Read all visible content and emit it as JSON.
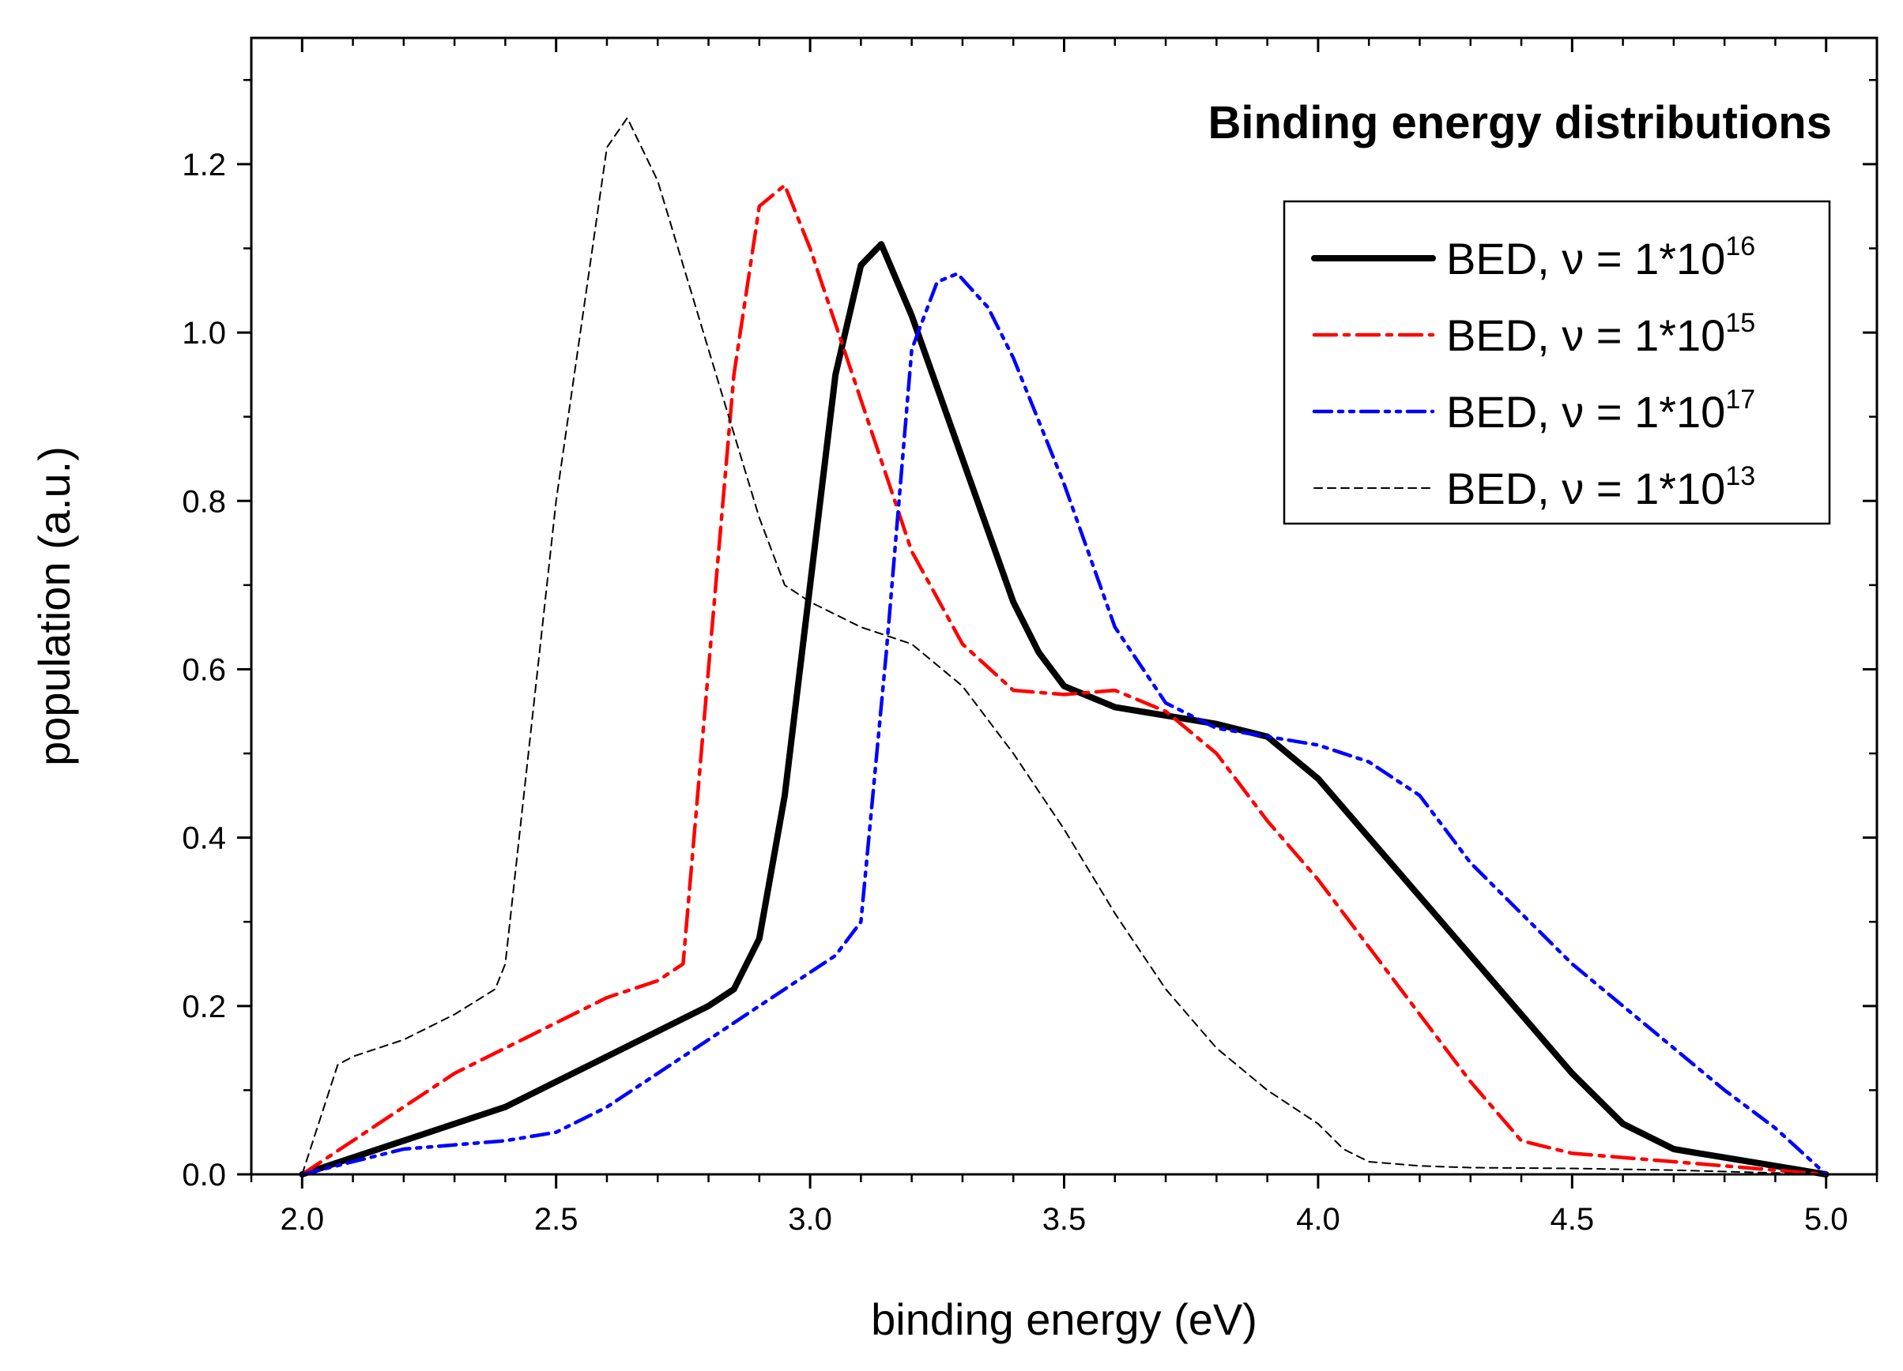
{
  "chart_data": {
    "type": "line",
    "title": "Binding energy distributions",
    "xlabel": "binding energy (eV)",
    "ylabel": "population (a.u.)",
    "xlim": [
      1.9,
      5.1
    ],
    "ylim": [
      0.0,
      1.35
    ],
    "xticks": [
      "2.0",
      "2.5",
      "3.0",
      "3.5",
      "4.0",
      "4.5",
      "5.0"
    ],
    "yticks": [
      "0.0",
      "0.2",
      "0.4",
      "0.6",
      "0.8",
      "1.0",
      "1.2"
    ],
    "legend_position": "top-right",
    "grid": false,
    "series": [
      {
        "name": "BED, ν = 1*10",
        "sup": "16",
        "color": "#000000",
        "style": "solid-thick",
        "x": [
          2.0,
          2.1,
          2.2,
          2.3,
          2.4,
          2.5,
          2.6,
          2.7,
          2.8,
          2.85,
          2.9,
          2.95,
          3.0,
          3.05,
          3.1,
          3.14,
          3.2,
          3.3,
          3.4,
          3.45,
          3.5,
          3.6,
          3.7,
          3.8,
          3.9,
          4.0,
          4.1,
          4.2,
          4.3,
          4.4,
          4.5,
          4.6,
          4.7,
          4.75,
          4.8,
          4.9,
          5.0
        ],
        "y": [
          0.0,
          0.02,
          0.04,
          0.06,
          0.08,
          0.11,
          0.14,
          0.17,
          0.2,
          0.22,
          0.28,
          0.45,
          0.7,
          0.95,
          1.08,
          1.105,
          1.02,
          0.85,
          0.68,
          0.62,
          0.58,
          0.555,
          0.545,
          0.535,
          0.52,
          0.47,
          0.4,
          0.33,
          0.26,
          0.19,
          0.12,
          0.06,
          0.03,
          0.025,
          0.02,
          0.01,
          0.0
        ]
      },
      {
        "name": "BED, ν = 1*10",
        "sup": "15",
        "color": "#ff0000",
        "style": "dash-dot",
        "x": [
          2.0,
          2.1,
          2.2,
          2.3,
          2.4,
          2.5,
          2.6,
          2.7,
          2.75,
          2.8,
          2.85,
          2.9,
          2.95,
          3.0,
          3.1,
          3.2,
          3.3,
          3.4,
          3.5,
          3.6,
          3.7,
          3.8,
          3.9,
          4.0,
          4.1,
          4.2,
          4.3,
          4.4,
          4.5,
          4.6,
          4.7,
          4.8,
          4.9,
          5.0
        ],
        "y": [
          0.0,
          0.04,
          0.08,
          0.12,
          0.15,
          0.18,
          0.21,
          0.23,
          0.25,
          0.6,
          0.95,
          1.15,
          1.175,
          1.1,
          0.92,
          0.74,
          0.63,
          0.575,
          0.57,
          0.575,
          0.55,
          0.5,
          0.42,
          0.35,
          0.27,
          0.19,
          0.11,
          0.04,
          0.025,
          0.02,
          0.015,
          0.01,
          0.005,
          0.0
        ]
      },
      {
        "name": "BED, ν = 1*10",
        "sup": "17",
        "color": "#0000ff",
        "style": "dash-dot-dot",
        "x": [
          2.0,
          2.1,
          2.2,
          2.3,
          2.4,
          2.5,
          2.6,
          2.7,
          2.8,
          2.9,
          3.0,
          3.05,
          3.1,
          3.15,
          3.2,
          3.25,
          3.29,
          3.35,
          3.4,
          3.5,
          3.6,
          3.7,
          3.8,
          3.9,
          4.0,
          4.1,
          4.2,
          4.3,
          4.4,
          4.5,
          4.6,
          4.7,
          4.8,
          4.9,
          5.0
        ],
        "y": [
          0.0,
          0.015,
          0.03,
          0.035,
          0.04,
          0.05,
          0.08,
          0.12,
          0.16,
          0.2,
          0.24,
          0.26,
          0.3,
          0.62,
          0.98,
          1.06,
          1.07,
          1.03,
          0.97,
          0.82,
          0.65,
          0.56,
          0.53,
          0.52,
          0.51,
          0.49,
          0.45,
          0.37,
          0.31,
          0.25,
          0.2,
          0.15,
          0.1,
          0.055,
          0.0
        ]
      },
      {
        "name": "BED, ν = 1*10",
        "sup": "13",
        "color": "#000000",
        "style": "dashed-thin",
        "x": [
          2.0,
          2.07,
          2.1,
          2.2,
          2.3,
          2.38,
          2.4,
          2.5,
          2.6,
          2.64,
          2.7,
          2.8,
          2.9,
          2.95,
          3.0,
          3.1,
          3.2,
          3.3,
          3.4,
          3.5,
          3.6,
          3.7,
          3.8,
          3.9,
          4.0,
          4.05,
          4.1,
          4.2,
          4.3,
          4.5,
          4.7,
          5.0
        ],
        "y": [
          0.0,
          0.13,
          0.14,
          0.16,
          0.19,
          0.22,
          0.25,
          0.8,
          1.22,
          1.255,
          1.18,
          0.98,
          0.78,
          0.7,
          0.68,
          0.65,
          0.63,
          0.58,
          0.5,
          0.41,
          0.31,
          0.22,
          0.15,
          0.1,
          0.06,
          0.03,
          0.015,
          0.01,
          0.008,
          0.007,
          0.005,
          0.0
        ]
      }
    ]
  }
}
